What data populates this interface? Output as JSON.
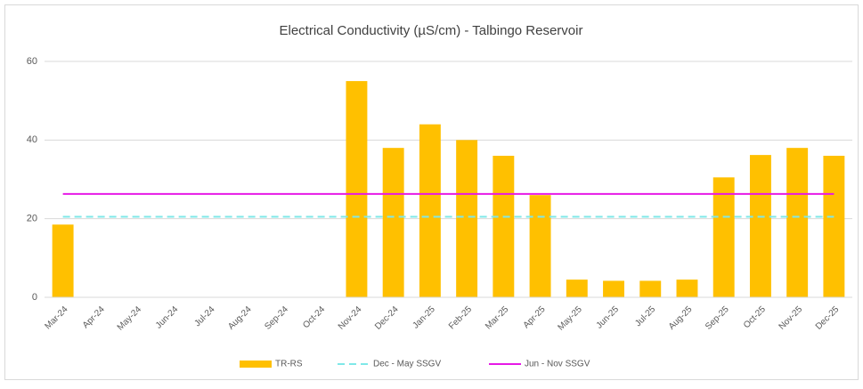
{
  "chart_data": {
    "type": "bar",
    "title": "Electrical Conductivity (µS/cm) - Talbingo Reservoir",
    "categories": [
      "Mar-24",
      "Apr-24",
      "May-24",
      "Jun-24",
      "Jul-24",
      "Aug-24",
      "Sep-24",
      "Oct-24",
      "Nov-24",
      "Dec-24",
      "Jan-25",
      "Feb-25",
      "Mar-25",
      "Apr-25",
      "May-25",
      "Jun-25",
      "Jul-25",
      "Aug-25",
      "Sep-25",
      "Oct-25",
      "Nov-25",
      "Dec-25"
    ],
    "series": [
      {
        "name": "TR-RS",
        "type": "bar",
        "color": "#ffc000",
        "values": [
          18.5,
          null,
          null,
          null,
          null,
          null,
          null,
          null,
          55,
          38,
          44,
          40,
          36,
          26,
          4.5,
          4.2,
          4.2,
          4.5,
          30.5,
          36.2,
          38,
          36
        ]
      },
      {
        "name": "Dec - May SSGV",
        "type": "line",
        "color": "#7fe8e8",
        "dashed": true,
        "values": [
          20.5,
          20.5,
          20.5,
          20.5,
          20.5,
          20.5,
          20.5,
          20.5,
          20.5,
          20.5,
          20.5,
          20.5,
          20.5,
          20.5,
          20.5,
          20.5,
          20.5,
          20.5,
          20.5,
          20.5,
          20.5,
          20.5
        ]
      },
      {
        "name": "Jun - Nov SSGV",
        "type": "line",
        "color": "#e619e6",
        "dashed": false,
        "values": [
          26.3,
          26.3,
          26.3,
          26.3,
          26.3,
          26.3,
          26.3,
          26.3,
          26.3,
          26.3,
          26.3,
          26.3,
          26.3,
          26.3,
          26.3,
          26.3,
          26.3,
          26.3,
          26.3,
          26.3,
          26.3,
          26.3
        ]
      }
    ],
    "ylim": [
      0,
      60
    ],
    "yticks": [
      0,
      20,
      40,
      60
    ],
    "grid": true,
    "legend": "bottom"
  }
}
